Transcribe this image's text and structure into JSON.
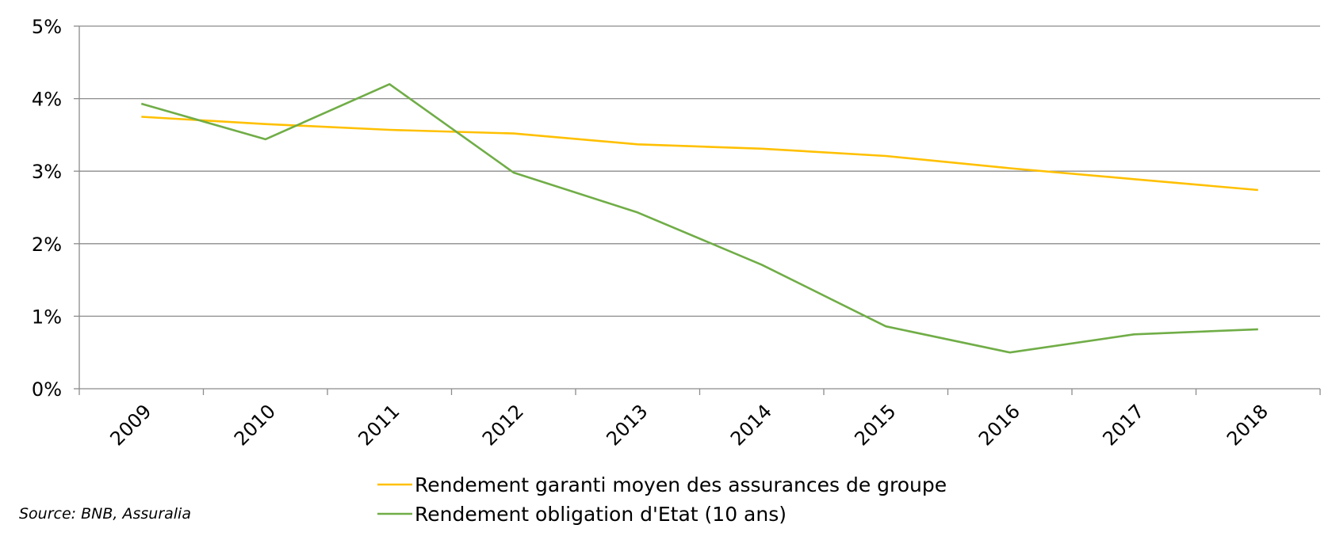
{
  "chart_data": {
    "type": "line",
    "title": "",
    "xlabel": "",
    "ylabel": "",
    "categories": [
      "2009",
      "2010",
      "2011",
      "2012",
      "2013",
      "2014",
      "2015",
      "2016",
      "2017",
      "2018"
    ],
    "y_ticks": [
      "0%",
      "1%",
      "2%",
      "3%",
      "4%",
      "5%"
    ],
    "ylim": [
      0,
      5
    ],
    "grid": true,
    "legend_position": "bottom",
    "series": [
      {
        "name": "Rendement garanti moyen des assurances de groupe",
        "color": "#FFC000",
        "values": [
          3.75,
          3.65,
          3.57,
          3.52,
          3.37,
          3.31,
          3.21,
          3.04,
          2.89,
          2.74
        ]
      },
      {
        "name": "Rendement obligation d'Etat (10 ans)",
        "color": "#70AD47",
        "values": [
          3.93,
          3.44,
          4.2,
          2.98,
          2.43,
          1.71,
          0.86,
          0.5,
          0.75,
          0.82
        ]
      }
    ],
    "source_note": "Source: BNB, Assuralia"
  }
}
